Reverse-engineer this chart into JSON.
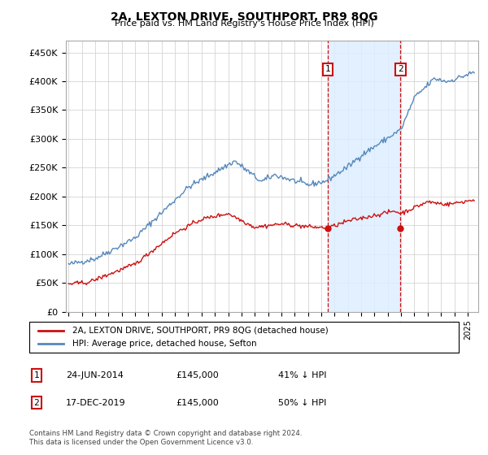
{
  "title": "2A, LEXTON DRIVE, SOUTHPORT, PR9 8QG",
  "subtitle": "Price paid vs. HM Land Registry's House Price Index (HPI)",
  "footer": "Contains HM Land Registry data © Crown copyright and database right 2024.\nThis data is licensed under the Open Government Licence v3.0.",
  "legend_line1": "2A, LEXTON DRIVE, SOUTHPORT, PR9 8QG (detached house)",
  "legend_line2": "HPI: Average price, detached house, Sefton",
  "annotation1_label": "1",
  "annotation1_date": "24-JUN-2014",
  "annotation1_price": "£145,000",
  "annotation1_note": "41% ↓ HPI",
  "annotation2_label": "2",
  "annotation2_date": "17-DEC-2019",
  "annotation2_price": "£145,000",
  "annotation2_note": "50% ↓ HPI",
  "yticks": [
    0,
    50000,
    100000,
    150000,
    200000,
    250000,
    300000,
    350000,
    400000,
    450000
  ],
  "ylabels": [
    "£0",
    "£50K",
    "£100K",
    "£150K",
    "£200K",
    "£250K",
    "£300K",
    "£350K",
    "£400K",
    "£450K"
  ],
  "ymin": 0,
  "ymax": 470000,
  "xmin": 1994.8,
  "xmax": 2025.8,
  "hpi_color": "#5588bb",
  "price_color": "#cc1111",
  "shaded_color": "#ddeeff",
  "sale1_x": 2014.48,
  "sale1_y": 145000,
  "sale2_x": 2019.96,
  "sale2_y": 145000,
  "vline1_x": 2014.48,
  "vline2_x": 2019.96,
  "shade_x1": 2014.48,
  "shade_x2": 2019.96
}
